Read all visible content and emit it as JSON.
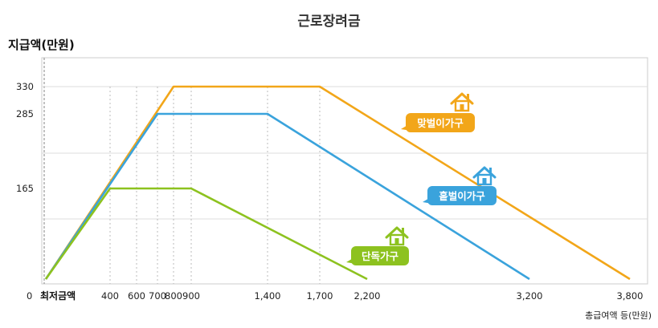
{
  "chart_data": {
    "type": "line",
    "title": "근로장려금",
    "ylabel": "지급액(만원)",
    "xlabel": "총급여액 등(만원)",
    "xlim": [
      0,
      3800
    ],
    "ylim": [
      0,
      330
    ],
    "x_ticks": [
      400,
      600,
      700,
      800,
      900,
      1400,
      1700,
      2200,
      3200,
      3800
    ],
    "x_tick_labels": [
      "400",
      "600",
      "700",
      "800",
      "900",
      "1,400",
      "1,700",
      "2,200",
      "3,200",
      "3,800"
    ],
    "y_ticks": [
      0,
      165,
      285,
      330
    ],
    "y_tick_labels": [
      "0",
      "165",
      "285",
      "330"
    ],
    "min_wage_label": "최저금액",
    "grid": true,
    "series": [
      {
        "name": "맞벌이가구",
        "color": "#f2a619",
        "points": [
          [
            0,
            0
          ],
          [
            800,
            330
          ],
          [
            1700,
            330
          ],
          [
            3800,
            0
          ]
        ]
      },
      {
        "name": "홑벌이가구",
        "color": "#3aa3dc",
        "points": [
          [
            0,
            0
          ],
          [
            700,
            285
          ],
          [
            1400,
            285
          ],
          [
            3200,
            0
          ]
        ]
      },
      {
        "name": "단독가구",
        "color": "#8dc21f",
        "points": [
          [
            0,
            0
          ],
          [
            400,
            165
          ],
          [
            900,
            165
          ],
          [
            2200,
            0
          ]
        ]
      }
    ]
  }
}
